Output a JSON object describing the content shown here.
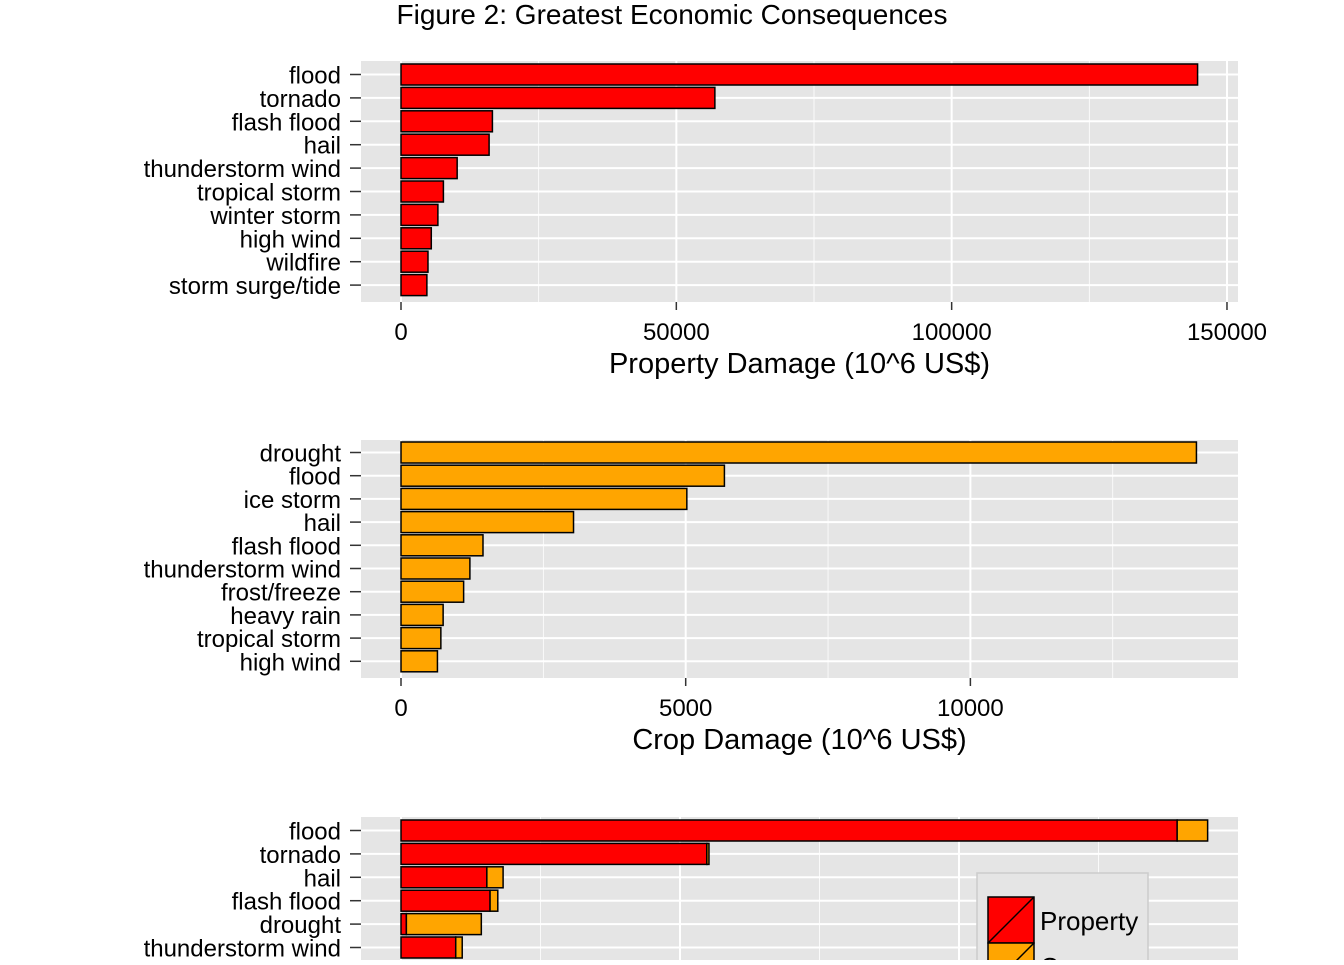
{
  "figure_title": "Figure 2: Greatest Economic Consequences",
  "colors": {
    "property": "#ff0000",
    "crop": "#ffa500",
    "panel_bg": "#e5e5e5",
    "grid": "#ffffff",
    "bar_outline": "#000000"
  },
  "chart_data": [
    {
      "type": "bar",
      "orientation": "horizontal",
      "xlabel": "Property Damage (10^6 US$)",
      "xlim": [
        0,
        152000
      ],
      "xticks": [
        0,
        50000,
        100000,
        150000
      ],
      "grid": true,
      "categories": [
        "flood",
        "tornado",
        "flash flood",
        "hail",
        "thunderstorm wind",
        "tropical storm",
        "winter storm",
        "high wind",
        "wildfire",
        "storm surge/tide"
      ],
      "series": [
        {
          "values": [
            144660,
            57000,
            16600,
            16000,
            10200,
            7700,
            6700,
            5500,
            4900,
            4700
          ]
        }
      ]
    },
    {
      "type": "bar",
      "orientation": "horizontal",
      "xlabel": "Crop Damage (10^6 US$)",
      "xlim": [
        0,
        14700
      ],
      "xticks": [
        0,
        5000,
        10000
      ],
      "grid": true,
      "categories": [
        "drought",
        "flood",
        "ice storm",
        "hail",
        "flash flood",
        "thunderstorm wind",
        "frost/freeze",
        "heavy rain",
        "tropical storm",
        "high wind"
      ],
      "series": [
        {
          "values": [
            13970,
            5680,
            5020,
            3030,
            1440,
            1210,
            1100,
            740,
            700,
            640
          ]
        }
      ]
    },
    {
      "type": "bar",
      "orientation": "horizontal",
      "stacked": true,
      "xlabel": "",
      "xlim": [
        0,
        156000
      ],
      "grid": true,
      "categories": [
        "flood",
        "tornado",
        "hail",
        "flash flood",
        "drought",
        "thunderstorm wind"
      ],
      "legend": {
        "placement": "bottom-right",
        "entries": [
          "Property",
          "Crop"
        ]
      },
      "series": [
        {
          "name": "Property",
          "values": [
            144660,
            57000,
            16000,
            16600,
            1000,
            10200
          ]
        },
        {
          "name": "Crop",
          "values": [
            5680,
            400,
            3030,
            1440,
            13970,
            1210
          ]
        }
      ]
    }
  ]
}
